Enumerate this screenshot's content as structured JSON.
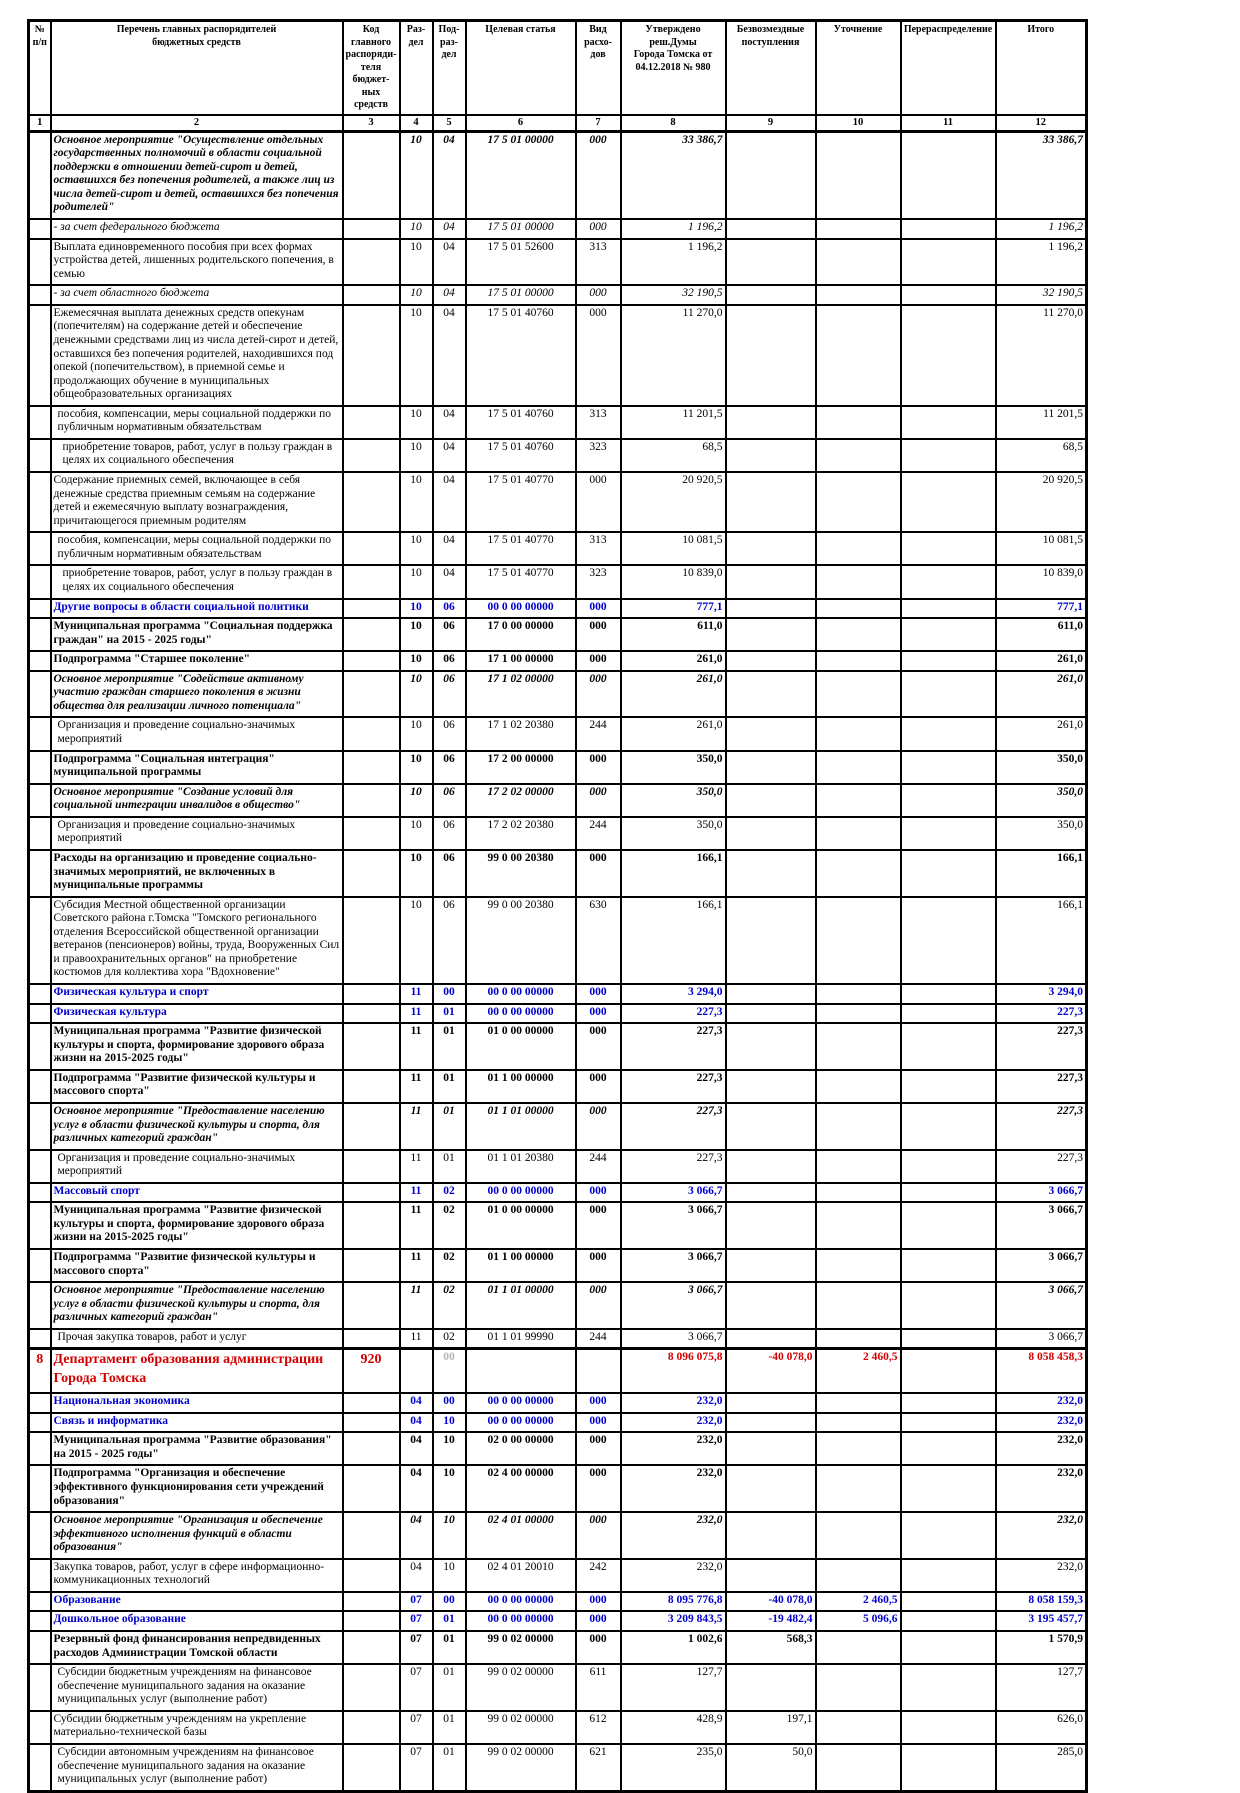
{
  "colors": {
    "blue": "#0000cc",
    "red": "#d40000",
    "gray_code": "#b5b5b5"
  },
  "table": {
    "header": {
      "cols": [
        "№\nп/п",
        "Перечень главных распорядителей\nбюджетных средств",
        "Код главного\nраспоряди-\nтеля бюджет-\nных средств",
        "Раз-\nдел",
        "Под-\nраз-\nдел",
        "Целевая статья",
        "Вид расхо-\nдов",
        "Утверждено реш.Думы\nГорода Томска от\n04.12.2018 № 980",
        "Безвозмездные\nпоступления",
        "Уточнение",
        "Перераспределение",
        "Итого"
      ],
      "numbers": [
        "1",
        "2",
        "3",
        "4",
        "5",
        "6",
        "7",
        "8",
        "9",
        "10",
        "11",
        "12"
      ]
    },
    "rows": [
      {
        "style": "bolditalic",
        "name": "Основное мероприятие \"Осуществление отдельных государственных полномочий в области социальной поддержки в отношении детей-сирот и детей, оставшихся без попечения родителей, а также лиц из числа детей-сирот и детей, оставшихся без попечения родителей\"",
        "rz": "10",
        "pr": "04",
        "ts": "17 5 01 00000",
        "vr": "000",
        "approved": "33 386,7",
        "total": "33 386,7"
      },
      {
        "style": "italic",
        "name": "- за счет федерального бюджета",
        "rz": "10",
        "pr": "04",
        "ts": "17 5 01 00000",
        "vr": "000",
        "approved": "1 196,2",
        "total": "1 196,2"
      },
      {
        "style": "normal",
        "name": "Выплата единовременного пособия при всех формах устройства детей, лишенных родительского попечения, в семью",
        "rz": "10",
        "pr": "04",
        "ts": "17 5 01 52600",
        "vr": "313",
        "approved": "1 196,2",
        "total": "1 196,2"
      },
      {
        "style": "italic",
        "name": "- за счет областного бюджета",
        "rz": "10",
        "pr": "04",
        "ts": "17 5 01 00000",
        "vr": "000",
        "approved": "32 190,5",
        "total": "32 190,5"
      },
      {
        "style": "normal",
        "name": "Ежемесячная выплата денежных средств опекунам (попечителям) на содержание детей и обеспечение денежными средствами лиц из числа детей-сирот и детей, оставшихся без попечения родителей, находившихся под опекой (попечительством), в приемной семье и продолжающих обучение в муниципальных общеобразовательных организациях",
        "rz": "10",
        "pr": "04",
        "ts": "17 5 01 40760",
        "vr": "000",
        "approved": "11 270,0",
        "total": "11 270,0"
      },
      {
        "style": "normal",
        "ind": 1,
        "name": "пособия, компенсации, меры социальной поддержки по публичным нормативным обязательствам",
        "rz": "10",
        "pr": "04",
        "ts": "17 5 01 40760",
        "vr": "313",
        "approved": "11 201,5",
        "total": "11 201,5"
      },
      {
        "style": "normal",
        "ind": 2,
        "name": "приобретение товаров, работ, услуг в пользу граждан в целях их социального обеспечения",
        "rz": "10",
        "pr": "04",
        "ts": "17 5 01 40760",
        "vr": "323",
        "approved": "68,5",
        "total": "68,5"
      },
      {
        "style": "normal",
        "name": "Содержание приемных семей, включающее в себя денежные средства приемным семьям на содержание детей и ежемесячную выплату вознаграждения, причитающегося приемным родителям",
        "rz": "10",
        "pr": "04",
        "ts": "17 5 01 40770",
        "vr": "000",
        "approved": "20 920,5",
        "total": "20 920,5"
      },
      {
        "style": "normal",
        "ind": 1,
        "name": "пособия, компенсации, меры социальной поддержки по публичным нормативным обязательствам",
        "rz": "10",
        "pr": "04",
        "ts": "17 5 01 40770",
        "vr": "313",
        "approved": "10 081,5",
        "total": "10 081,5"
      },
      {
        "style": "normal",
        "ind": 2,
        "name": "приобретение товаров, работ, услуг в пользу граждан в целях их социального обеспечения",
        "rz": "10",
        "pr": "04",
        "ts": "17 5 01 40770",
        "vr": "323",
        "approved": "10 839,0",
        "total": "10 839,0"
      },
      {
        "style": "blue",
        "name": "Другие вопросы в области социальной политики",
        "rz": "10",
        "pr": "06",
        "ts": "00 0 00 00000",
        "vr": "000",
        "approved": "777,1",
        "total": "777,1"
      },
      {
        "style": "bold",
        "name": "Муниципальная программа \"Социальная поддержка граждан\" на 2015 - 2025 годы\"",
        "rz": "10",
        "pr": "06",
        "ts": "17 0 00 00000",
        "vr": "000",
        "approved": "611,0",
        "total": "611,0"
      },
      {
        "style": "bold",
        "name": "Подпрограмма \"Старшее поколение\"",
        "rz": "10",
        "pr": "06",
        "ts": "17 1 00 00000",
        "vr": "000",
        "approved": "261,0",
        "total": "261,0"
      },
      {
        "style": "bolditalic",
        "name": "Основное мероприятие \"Содействие активному участию граждан старшего поколения в жизни общества для реализации личного потенциала\"",
        "rz": "10",
        "pr": "06",
        "ts": "17 1 02 00000",
        "vr": "000",
        "approved": "261,0",
        "total": "261,0"
      },
      {
        "style": "normal",
        "ind": 1,
        "name": "Организация и проведение социально-значимых мероприятий",
        "rz": "10",
        "pr": "06",
        "ts": "17 1 02 20380",
        "vr": "244",
        "approved": "261,0",
        "total": "261,0"
      },
      {
        "style": "bold",
        "name": "Подпрограмма \"Социальная интеграция\" муниципальной программы",
        "rz": "10",
        "pr": "06",
        "ts": "17 2 00 00000",
        "vr": "000",
        "approved": "350,0",
        "total": "350,0"
      },
      {
        "style": "bolditalic",
        "name": "Основное мероприятие \"Создание условий для социальной интеграции инвалидов в общество\"",
        "rz": "10",
        "pr": "06",
        "ts": "17 2 02 00000",
        "vr": "000",
        "approved": "350,0",
        "total": "350,0"
      },
      {
        "style": "normal",
        "ind": 1,
        "name": "Организация и проведение социально-значимых мероприятий",
        "rz": "10",
        "pr": "06",
        "ts": "17 2 02 20380",
        "vr": "244",
        "approved": "350,0",
        "total": "350,0"
      },
      {
        "style": "bold",
        "name": "Расходы на организацию и проведение социально-значимых мероприятий, не включенных в муниципальные программы",
        "rz": "10",
        "pr": "06",
        "ts": "99 0 00 20380",
        "vr": "000",
        "approved": "166,1",
        "total": "166,1"
      },
      {
        "style": "normal",
        "name": "Субсидия Местной общественной организации Советского района г.Томска \"Томского регионального отделения Всероссийской общественной организации ветеранов (пенсионеров) войны, труда, Вооруженных Сил и правоохранительных органов\" на приобретение костюмов для коллектива хора \"Вдохновение\"",
        "rz": "10",
        "pr": "06",
        "ts": "99 0 00 20380",
        "vr": "630",
        "approved": "166,1",
        "total": "166,1"
      },
      {
        "style": "blue",
        "name": "Физическая культура и спорт",
        "rz": "11",
        "pr": "00",
        "ts": "00 0 00 00000",
        "vr": "000",
        "approved": "3 294,0",
        "total": "3 294,0"
      },
      {
        "style": "blue",
        "name": "Физическая культура",
        "rz": "11",
        "pr": "01",
        "ts": "00 0 00 00000",
        "vr": "000",
        "approved": "227,3",
        "total": "227,3"
      },
      {
        "style": "bold",
        "name": "Муниципальная программа \"Развитие физической культуры и спорта, формирование здорового образа жизни на 2015-2025 годы\"",
        "rz": "11",
        "pr": "01",
        "ts": "01 0 00 00000",
        "vr": "000",
        "approved": "227,3",
        "total": "227,3"
      },
      {
        "style": "bold",
        "name": "Подпрограмма \"Развитие физической культуры и массового спорта\"",
        "rz": "11",
        "pr": "01",
        "ts": "01 1 00 00000",
        "vr": "000",
        "approved": "227,3",
        "total": "227,3"
      },
      {
        "style": "bolditalic",
        "name": "Основное мероприятие \"Предоставление населению услуг в области физической культуры и спорта, для различных категорий граждан\"",
        "rz": "11",
        "pr": "01",
        "ts": "01 1 01 00000",
        "vr": "000",
        "approved": "227,3",
        "total": "227,3"
      },
      {
        "style": "normal",
        "ind": 1,
        "name": "Организация и проведение социально-значимых мероприятий",
        "rz": "11",
        "pr": "01",
        "ts": "01 1 01 20380",
        "vr": "244",
        "approved": "227,3",
        "total": "227,3"
      },
      {
        "style": "blue",
        "name": "Массовый спорт",
        "rz": "11",
        "pr": "02",
        "ts": "00 0 00 00000",
        "vr": "000",
        "approved": "3 066,7",
        "total": "3 066,7"
      },
      {
        "style": "bold",
        "name": "Муниципальная программа \"Развитие физической культуры и спорта, формирование здорового образа жизни на 2015-2025 годы\"",
        "rz": "11",
        "pr": "02",
        "ts": "01 0 00 00000",
        "vr": "000",
        "approved": "3 066,7",
        "total": "3 066,7"
      },
      {
        "style": "bold",
        "name": "Подпрограмма \"Развитие физической культуры и массового спорта\"",
        "rz": "11",
        "pr": "02",
        "ts": "01 1 00 00000",
        "vr": "000",
        "approved": "3 066,7",
        "total": "3 066,7"
      },
      {
        "style": "bolditalic",
        "name": "Основное мероприятие \"Предоставление населению услуг в области физической культуры и спорта, для различных категорий граждан\"",
        "rz": "11",
        "pr": "02",
        "ts": "01 1 01 00000",
        "vr": "000",
        "approved": "3 066,7",
        "total": "3 066,7"
      },
      {
        "style": "normal",
        "ind": 1,
        "name": "Прочая закупка товаров, работ и услуг",
        "rz": "11",
        "pr": "02",
        "ts": "01 1 01 99990",
        "vr": "244",
        "approved": "3 066,7",
        "total": "3 066,7"
      },
      {
        "style": "red",
        "thick": true,
        "n": "8",
        "name": "Департамент образования администрации Города Томска",
        "code": "920",
        "pr": "00",
        "pr_gray": true,
        "approved": "8 096 075,8",
        "grants": "-40 078,0",
        "adj": "2 460,5",
        "total": "8 058 458,3"
      },
      {
        "style": "blue",
        "name": "Национальная экономика",
        "rz": "04",
        "pr": "00",
        "ts": "00 0 00 00000",
        "vr": "000",
        "approved": "232,0",
        "total": "232,0"
      },
      {
        "style": "blue",
        "name": "Связь и информатика",
        "rz": "04",
        "pr": "10",
        "ts": "00 0 00 00000",
        "vr": "000",
        "approved": "232,0",
        "total": "232,0"
      },
      {
        "style": "bold",
        "name": "Муниципальная программа \"Развитие образования\" на 2015 - 2025 годы\"",
        "rz": "04",
        "pr": "10",
        "ts": "02 0 00 00000",
        "vr": "000",
        "approved": "232,0",
        "total": "232,0"
      },
      {
        "style": "bold",
        "name": "Подпрограмма \"Организация и обеспечение эффективного функционирования сети учреждений образования\"",
        "rz": "04",
        "pr": "10",
        "ts": "02 4 00 00000",
        "vr": "000",
        "approved": "232,0",
        "total": "232,0"
      },
      {
        "style": "bolditalic",
        "name": "Основное мероприятие \"Организация и обеспечение эффективного исполнения функций в области образования\"",
        "rz": "04",
        "pr": "10",
        "ts": "02 4 01 00000",
        "vr": "000",
        "approved": "232,0",
        "total": "232,0"
      },
      {
        "style": "normal",
        "name": "Закупка товаров, работ, услуг в сфере информационно-коммуникационных технологий",
        "rz": "04",
        "pr": "10",
        "ts": "02 4 01 20010",
        "vr": "242",
        "approved": "232,0",
        "total": "232,0"
      },
      {
        "style": "blue",
        "name": "Образование",
        "rz": "07",
        "pr": "00",
        "ts": "00 0 00 00000",
        "vr": "000",
        "approved": "8 095 776,8",
        "grants": "-40 078,0",
        "adj": "2 460,5",
        "total": "8 058 159,3"
      },
      {
        "style": "blue",
        "name": "Дошкольное образование",
        "rz": "07",
        "pr": "01",
        "ts": "00 0 00 00000",
        "vr": "000",
        "approved": "3 209 843,5",
        "grants": "-19 482,4",
        "adj": "5 096,6",
        "total": "3 195 457,7"
      },
      {
        "style": "bold",
        "name": "Резервный фонд финансирования непредвиденных расходов Администрации Томской области",
        "rz": "07",
        "pr": "01",
        "ts": "99 0 02 00000",
        "vr": "000",
        "approved": "1 002,6",
        "grants": "568,3",
        "total": "1 570,9"
      },
      {
        "style": "normal",
        "ind": 1,
        "name": "Субсидии бюджетным учреждениям на финансовое обеспечение муниципального задания на оказание муниципальных услуг (выполнение работ)",
        "rz": "07",
        "pr": "01",
        "ts": "99 0 02 00000",
        "vr": "611",
        "approved": "127,7",
        "total": "127,7"
      },
      {
        "style": "normal",
        "name": "Субсидии бюджетным учреждениям на укрепление материально-технической базы",
        "rz": "07",
        "pr": "01",
        "ts": "99 0 02 00000",
        "vr": "612",
        "approved": "428,9",
        "grants": "197,1",
        "total": "626,0"
      },
      {
        "style": "normal",
        "ind": 1,
        "name": "Субсидии автономным учреждениям на финансовое обеспечение муниципального задания на оказание муниципальных услуг (выполнение работ)",
        "rz": "07",
        "pr": "01",
        "ts": "99 0 02 00000",
        "vr": "621",
        "approved": "235,0",
        "grants": "50,0",
        "total": "285,0"
      }
    ]
  }
}
